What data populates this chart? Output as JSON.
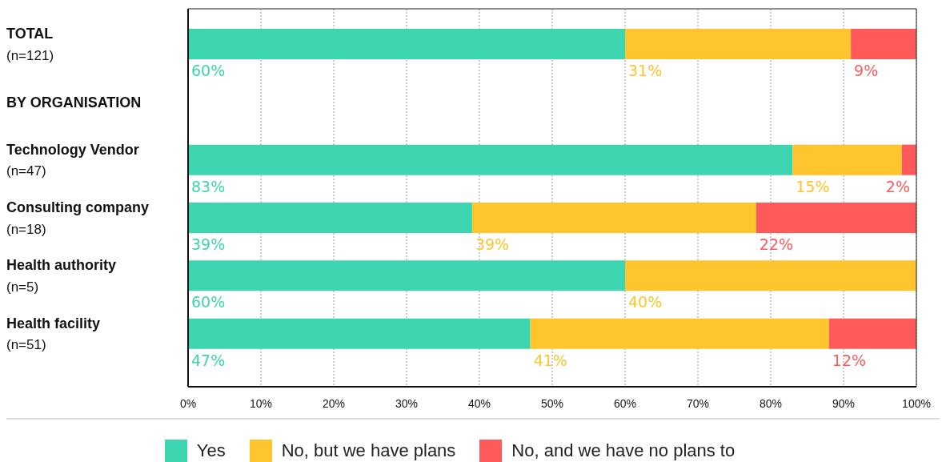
{
  "chart_data": {
    "type": "bar",
    "orientation": "horizontal",
    "stacked": true,
    "categories": [
      "TOTAL\n(n=121)",
      "BY ORGANISATION",
      "Technology Vendor\n(n=47)",
      "Consulting company\n(n=18)",
      "Health authority\n(n=5)",
      "Health facility\n(n=51)"
    ],
    "series": [
      {
        "name": "Yes",
        "color": "#3dd5b0",
        "values": [
          60,
          null,
          83,
          39,
          60,
          47
        ],
        "value_labels": [
          "60%",
          null,
          "83%",
          "39%",
          "60%",
          "47%"
        ]
      },
      {
        "name": "No, but we have plans",
        "color": "#fec52e",
        "values": [
          31,
          null,
          15,
          39,
          40,
          41
        ],
        "value_labels": [
          "31%",
          null,
          "15%",
          "39%",
          "40%",
          "41%"
        ]
      },
      {
        "name": "No, and we have no plans to",
        "color": "#fe5a5a",
        "values": [
          9,
          null,
          2,
          22,
          null,
          12
        ],
        "value_labels": [
          "9%",
          null,
          "2%",
          "22%",
          null,
          "12%"
        ]
      }
    ],
    "xlim": [
      0,
      100
    ],
    "xticks": [
      {
        "value": 0,
        "label": "0%"
      },
      {
        "value": 10,
        "label": "10%"
      },
      {
        "value": 20,
        "label": "20%"
      },
      {
        "value": 30,
        "label": "30%"
      },
      {
        "value": 40,
        "label": "40%"
      },
      {
        "value": 50,
        "label": "50%"
      },
      {
        "value": 60,
        "label": "60%"
      },
      {
        "value": 70,
        "label": "70%"
      },
      {
        "value": 80,
        "label": "80%"
      },
      {
        "value": 90,
        "label": "90%"
      },
      {
        "value": 100,
        "label": "100%"
      }
    ],
    "grid": "x",
    "legend": "bottom"
  }
}
